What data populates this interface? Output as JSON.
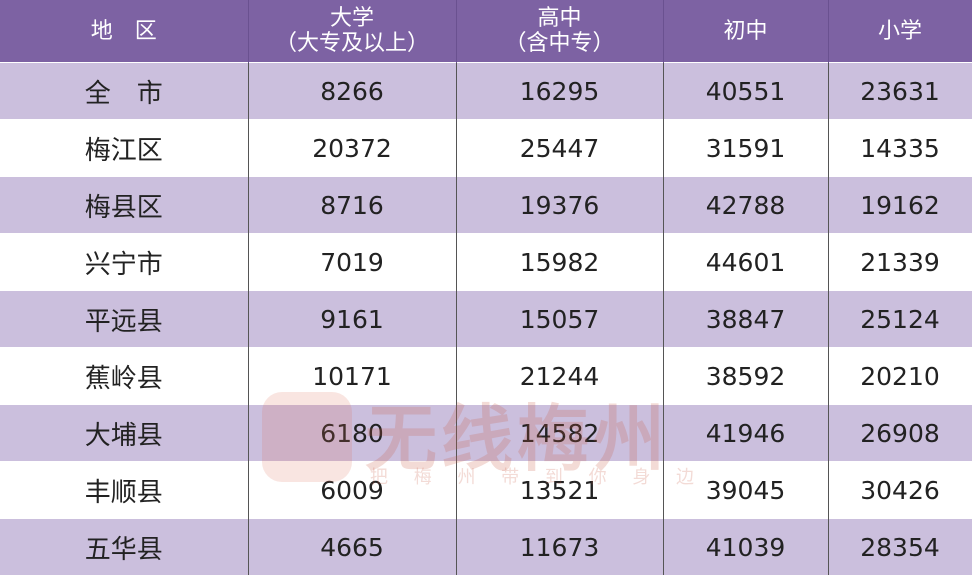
{
  "table": {
    "header": [
      [
        "地　区"
      ],
      [
        "大学",
        "（大专及以上）"
      ],
      [
        "高中",
        "（含中专）"
      ],
      [
        "初中"
      ],
      [
        "小学"
      ]
    ],
    "rows": [
      [
        "全　市",
        8266,
        16295,
        40551,
        23631
      ],
      [
        "梅江区",
        20372,
        25447,
        31591,
        14335
      ],
      [
        "梅县区",
        8716,
        19376,
        42788,
        19162
      ],
      [
        "兴宁市",
        7019,
        15982,
        44601,
        21339
      ],
      [
        "平远县",
        9161,
        15057,
        38847,
        25124
      ],
      [
        "蕉岭县",
        10171,
        21244,
        38592,
        20210
      ],
      [
        "大埔县",
        6180,
        14582,
        41946,
        26908
      ],
      [
        "丰顺县",
        6009,
        13521,
        39045,
        30426
      ],
      [
        "五华县",
        4665,
        11673,
        41039,
        28354
      ]
    ]
  },
  "watermark": {
    "title": "无线梅州",
    "slogan": "把 梅 州 带 到 你 身 边"
  }
}
